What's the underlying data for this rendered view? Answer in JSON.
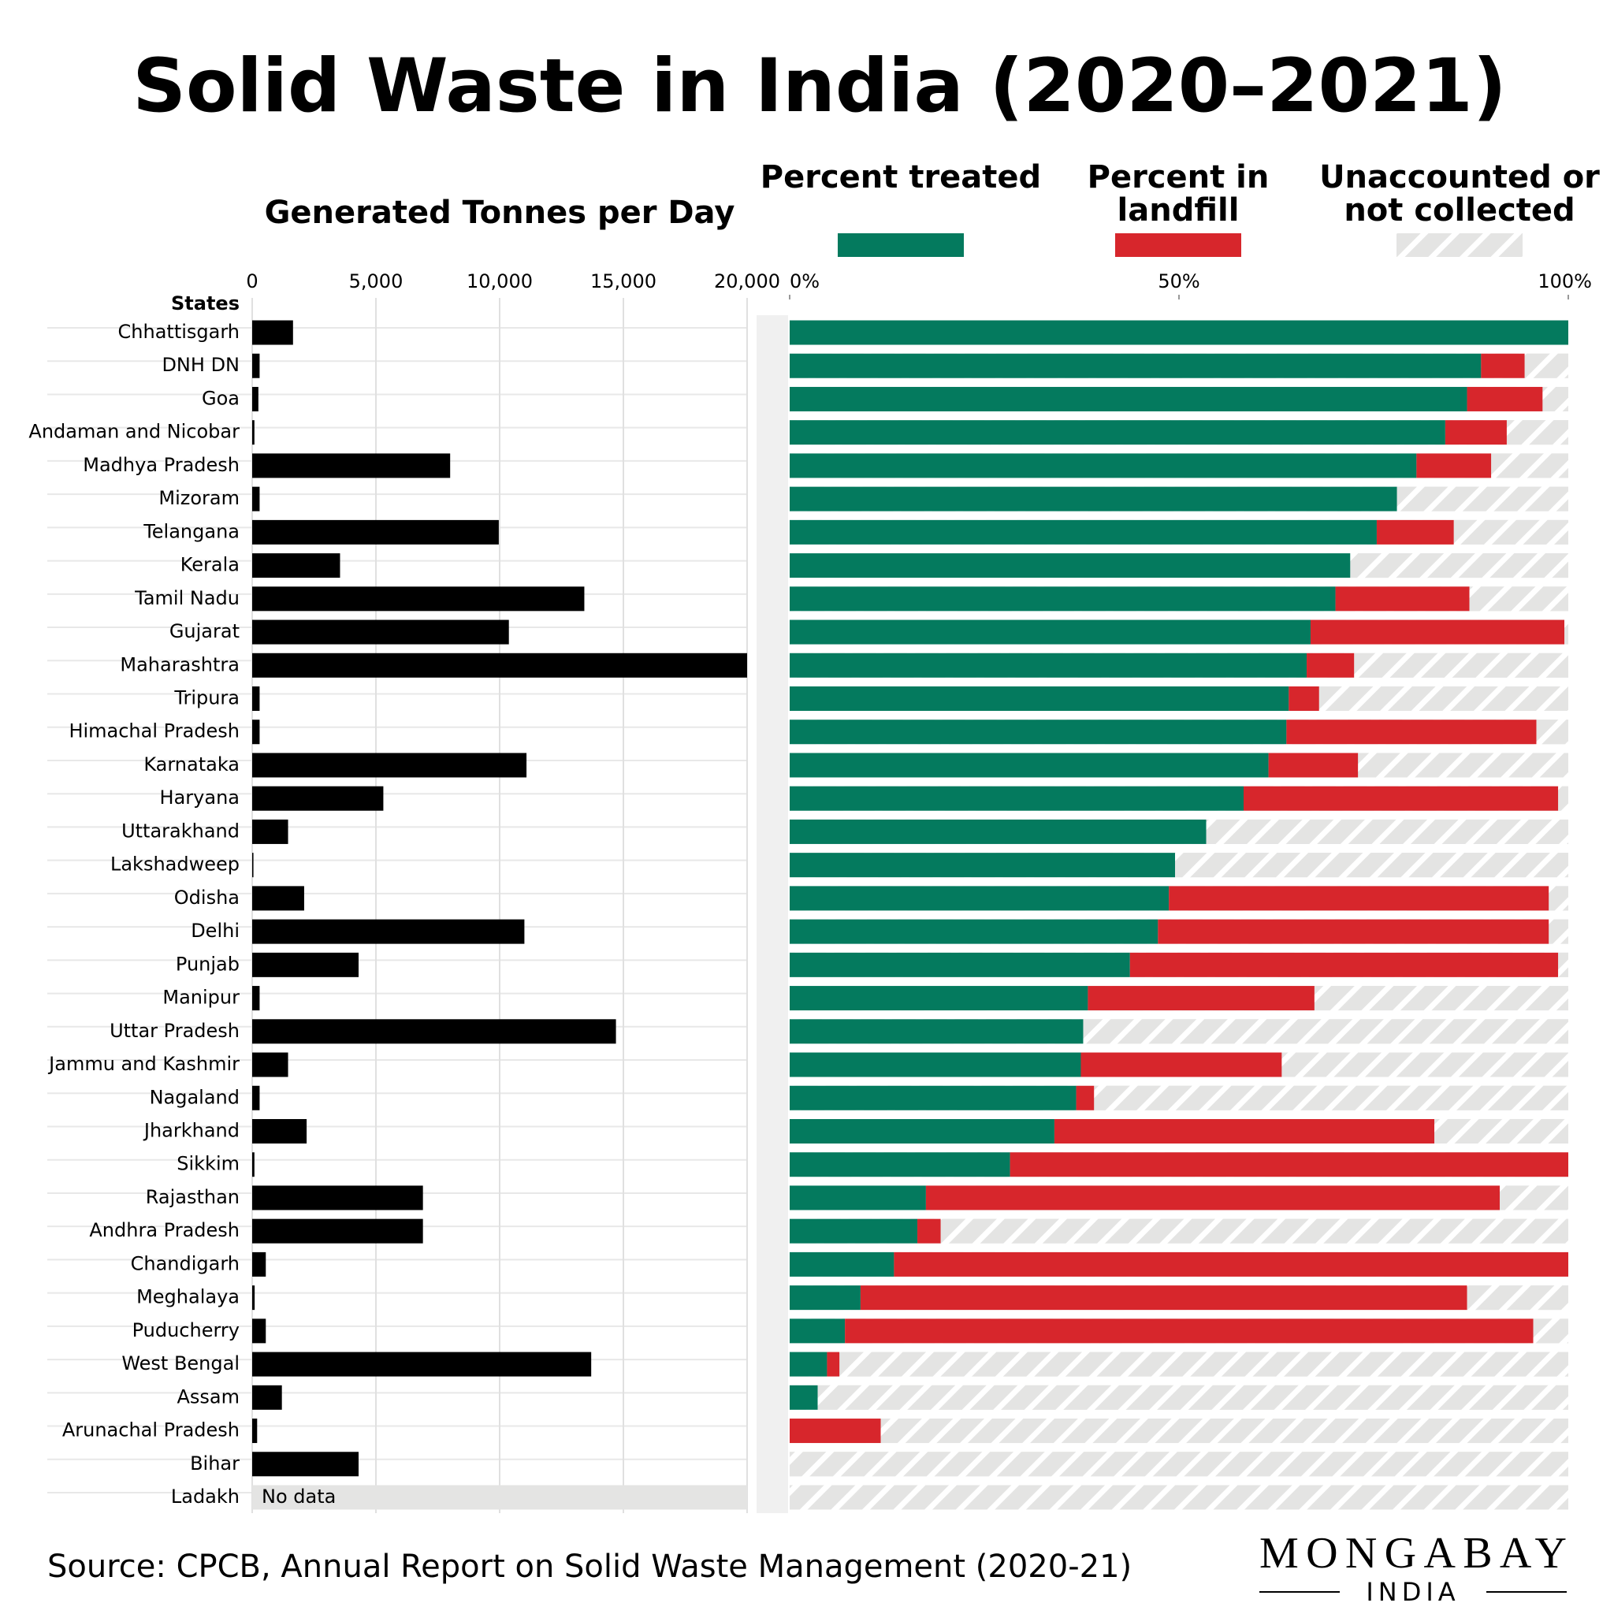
{
  "title": "Solid Waste in India (2020–2021)",
  "source": "Source: CPCB, Annual Report on Solid Waste Management (2020-21)",
  "logo": {
    "name": "MONGABAY",
    "region": "INDIA"
  },
  "chart_data": [
    {
      "type": "hbar",
      "title": "Generated Tonnes per Day",
      "ylabel": "States",
      "color": "#000000",
      "missing_label": "No data",
      "categories": [
        "Chhattisgarh",
        "DNH DN",
        "Goa",
        "Andaman and Nicobar",
        "Madhya Pradesh",
        "Mizoram",
        "Telangana",
        "Kerala",
        "Tamil Nadu",
        "Gujarat",
        "Maharashtra",
        "Tripura",
        "Himachal Pradesh",
        "Karnataka",
        "Haryana",
        "Uttarakhand",
        "Lakshadweep",
        "Odisha",
        "Delhi",
        "Punjab",
        "Manipur",
        "Uttar Pradesh",
        "Jammu and Kashmir",
        "Nagaland",
        "Jharkhand",
        "Sikkim",
        "Rajasthan",
        "Andhra Pradesh",
        "Chandigarh",
        "Meghalaya",
        "Puducherry",
        "West Bengal",
        "Assam",
        "Arunachal Pradesh",
        "Bihar",
        "Ladakh"
      ],
      "values": [
        1650,
        300,
        250,
        90,
        8000,
        300,
        9965,
        3550,
        13422,
        10373,
        20000,
        300,
        300,
        11085,
        5300,
        1450,
        50,
        2100,
        11000,
        4300,
        300,
        14700,
        1450,
        300,
        2200,
        90,
        6900,
        6900,
        550,
        100,
        550,
        13700,
        1200,
        200,
        4300,
        null
      ],
      "xlim": [
        0,
        20000
      ],
      "xticks": [
        0,
        {
          "value": 5000,
          "label": "5,000"
        },
        {
          "value": 10000,
          "label": "10,000"
        },
        {
          "value": 15000,
          "label": "15,000"
        },
        {
          "value": 20000,
          "label": "20,000"
        }
      ]
    },
    {
      "type": "stacked_hbar",
      "xlim": [
        0,
        100
      ],
      "xticks": [
        {
          "value": 0,
          "label": "0%"
        },
        {
          "value": 50,
          "label": "50%"
        },
        {
          "value": 100,
          "label": "100%"
        }
      ],
      "series": [
        {
          "name": "Percent treated",
          "color": "#047a5e",
          "values": [
            100,
            88.8,
            87.0,
            84.2,
            80.5,
            78.0,
            75.4,
            72.0,
            70.1,
            66.9,
            66.4,
            64.1,
            63.8,
            61.5,
            58.3,
            53.5,
            49.5,
            48.7,
            47.3,
            43.7,
            38.3,
            37.7,
            37.4,
            36.8,
            34.0,
            28.3,
            17.5,
            16.4,
            13.4,
            9.1,
            7.1,
            4.8,
            3.6,
            0,
            0,
            null
          ]
        },
        {
          "name": "Percent in landfill",
          "color": "#d7262c",
          "values": [
            0,
            5.6,
            9.7,
            7.9,
            9.6,
            0,
            9.9,
            0,
            17.2,
            32.6,
            6.1,
            3.9,
            32.1,
            11.5,
            40.4,
            0,
            0,
            48.8,
            50.2,
            55.0,
            29.1,
            0,
            25.8,
            2.3,
            48.8,
            71.7,
            73.7,
            3.0,
            86.6,
            77.9,
            88.4,
            1.6,
            0,
            11.7,
            0,
            null
          ]
        },
        {
          "name": "Unaccounted or not collected",
          "color": "#e4e4e3",
          "values": [
            0,
            5.6,
            3.3,
            7.9,
            9.9,
            22.0,
            14.7,
            28.0,
            12.7,
            0.5,
            27.5,
            32.0,
            4.1,
            27.0,
            1.3,
            46.5,
            50.5,
            2.5,
            2.5,
            1.3,
            32.6,
            62.3,
            36.8,
            60.9,
            17.2,
            0,
            8.8,
            80.6,
            0,
            13.0,
            4.5,
            93.6,
            96.4,
            88.3,
            100,
            null
          ]
        }
      ]
    }
  ]
}
